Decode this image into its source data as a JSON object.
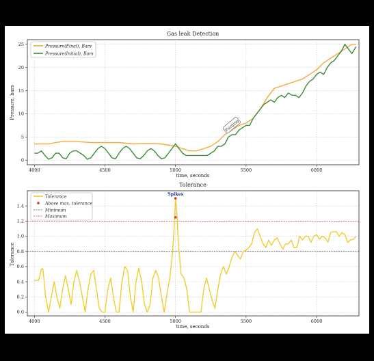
{
  "chart_data": [
    {
      "type": "line",
      "title": "Gas leak Detection",
      "xlabel": "time, seconds",
      "ylabel": "Pressure, bars",
      "xlim": [
        3950,
        6300
      ],
      "ylim": [
        -1,
        26
      ],
      "xticks": [
        4000,
        4500,
        5000,
        5500,
        6000
      ],
      "yticks": [
        0,
        5,
        10,
        15,
        20,
        25
      ],
      "grid": true,
      "legend": "top-left",
      "annotation": {
        "text": "Purging",
        "x": 5400,
        "y": 7.5
      },
      "series": [
        {
          "name": "Pressure(Final), Bars",
          "color": "#f2a93b",
          "x": [
            4000,
            4100,
            4150,
            4200,
            4300,
            4400,
            4500,
            4600,
            4700,
            4800,
            4900,
            5000,
            5050,
            5100,
            5150,
            5200,
            5250,
            5300,
            5350,
            5400,
            5450,
            5500,
            5550,
            5600,
            5650,
            5700,
            5750,
            5800,
            5850,
            5900,
            5950,
            6000,
            6050,
            6100,
            6150,
            6200,
            6250,
            6280
          ],
          "y": [
            3.5,
            3.5,
            3.8,
            4.0,
            4.0,
            3.8,
            3.8,
            3.8,
            3.5,
            3.6,
            3.5,
            3.0,
            2.5,
            2.0,
            2.0,
            2.5,
            3.0,
            4.0,
            5.5,
            6.5,
            7.5,
            8.0,
            9.0,
            11.0,
            13.5,
            15.5,
            16.0,
            16.5,
            17.0,
            17.5,
            18.5,
            19.5,
            21.0,
            22.0,
            23.0,
            24.0,
            25.0,
            25.0
          ]
        },
        {
          "name": "Pressure(Initial), Bars",
          "color": "#3d8b37",
          "x": [
            4000,
            4025,
            4050,
            4075,
            4100,
            4125,
            4150,
            4175,
            4200,
            4225,
            4250,
            4275,
            4300,
            4325,
            4350,
            4375,
            4400,
            4425,
            4450,
            4475,
            4500,
            4525,
            4550,
            4575,
            4600,
            4625,
            4650,
            4675,
            4700,
            4725,
            4750,
            4775,
            4800,
            4825,
            4850,
            4875,
            4900,
            4925,
            4950,
            4975,
            5000,
            5025,
            5050,
            5075,
            5100,
            5125,
            5150,
            5175,
            5200,
            5225,
            5250,
            5275,
            5300,
            5325,
            5350,
            5375,
            5400,
            5425,
            5450,
            5475,
            5500,
            5525,
            5550,
            5575,
            5600,
            5625,
            5650,
            5675,
            5700,
            5725,
            5750,
            5775,
            5800,
            5825,
            5850,
            5875,
            5900,
            5925,
            5950,
            5975,
            6000,
            6025,
            6050,
            6075,
            6100,
            6125,
            6150,
            6175,
            6200,
            6225,
            6250,
            6280
          ],
          "y": [
            1.5,
            1.5,
            2.0,
            1.0,
            0.2,
            0.5,
            1.5,
            1.5,
            0.5,
            0.3,
            1.5,
            2.0,
            2.0,
            1.5,
            1.0,
            0.2,
            0.5,
            1.5,
            2.5,
            3.0,
            2.5,
            1.5,
            0.5,
            0.3,
            1.5,
            2.5,
            3.0,
            2.5,
            1.5,
            0.5,
            0.3,
            1.0,
            2.0,
            2.5,
            2.0,
            1.0,
            0.3,
            0.5,
            1.5,
            2.5,
            3.5,
            2.5,
            1.5,
            1.0,
            1.0,
            1.0,
            1.0,
            1.0,
            1.0,
            1.0,
            1.5,
            2.0,
            3.0,
            3.0,
            3.5,
            5.0,
            5.5,
            5.5,
            6.5,
            7.0,
            7.5,
            7.5,
            9.0,
            10.0,
            11.0,
            12.0,
            12.5,
            13.0,
            12.5,
            13.5,
            14.0,
            13.5,
            14.5,
            14.0,
            14.0,
            13.5,
            14.5,
            16.0,
            17.0,
            17.5,
            18.5,
            19.0,
            18.5,
            20.0,
            21.0,
            21.5,
            22.5,
            23.5,
            25.0,
            24.0,
            23.0,
            24.5
          ]
        }
      ]
    },
    {
      "type": "line",
      "title": "Tolerance",
      "xlabel": "time, seconds",
      "ylabel": "Tolerance",
      "xlim": [
        3950,
        6300
      ],
      "ylim": [
        -0.05,
        1.6
      ],
      "xticks": [
        4000,
        4500,
        5000,
        5500,
        6000
      ],
      "yticks": [
        "0.0",
        "0.2",
        "0.4",
        "0.6",
        "0.8",
        "1.0",
        "1.2",
        "1.4"
      ],
      "grid": true,
      "legend": "top-left",
      "annotation": {
        "text": "Spikes",
        "x": 5000,
        "y": 1.5
      },
      "legend_entries": [
        "Tolerance",
        "Above max. tolerance",
        "Minimum",
        "Maximum"
      ],
      "thresholds": {
        "minimum": 0.8,
        "maximum": 1.2,
        "minimum_color": "#444444",
        "maximum_color": "#d9352e"
      },
      "above_max_points": [
        {
          "x": 5000,
          "y": 1.5
        },
        {
          "x": 5000,
          "y": 1.25
        }
      ],
      "series": [
        {
          "name": "Tolerance",
          "color": "#f0cc30",
          "x": [
            4000,
            4030,
            4050,
            4060,
            4080,
            4100,
            4120,
            4140,
            4160,
            4180,
            4200,
            4220,
            4240,
            4260,
            4280,
            4300,
            4320,
            4340,
            4360,
            4380,
            4400,
            4420,
            4440,
            4460,
            4480,
            4500,
            4520,
            4540,
            4560,
            4580,
            4600,
            4620,
            4640,
            4660,
            4680,
            4700,
            4720,
            4740,
            4760,
            4780,
            4800,
            4820,
            4840,
            4860,
            4880,
            4900,
            4920,
            4940,
            4960,
            4980,
            4990,
            5000,
            5010,
            5020,
            5040,
            5060,
            5080,
            5100,
            5120,
            5140,
            5160,
            5180,
            5200,
            5220,
            5240,
            5260,
            5280,
            5300,
            5320,
            5340,
            5360,
            5380,
            5400,
            5420,
            5440,
            5460,
            5480,
            5500,
            5520,
            5540,
            5560,
            5580,
            5600,
            5620,
            5640,
            5660,
            5680,
            5700,
            5720,
            5740,
            5760,
            5780,
            5800,
            5820,
            5840,
            5860,
            5880,
            5900,
            5920,
            5940,
            5960,
            5980,
            6000,
            6020,
            6040,
            6060,
            6080,
            6100,
            6120,
            6140,
            6160,
            6180,
            6200,
            6220,
            6240,
            6260,
            6280
          ],
          "y": [
            0.42,
            0.42,
            0.57,
            0.57,
            0.2,
            0.0,
            0.2,
            0.4,
            0.2,
            0.05,
            0.3,
            0.48,
            0.3,
            0.1,
            0.4,
            0.55,
            0.4,
            0.2,
            0.0,
            0.3,
            0.5,
            0.55,
            0.3,
            0.05,
            0.0,
            0.0,
            0.3,
            0.45,
            0.2,
            0.0,
            0.0,
            0.4,
            0.6,
            0.55,
            0.2,
            0.0,
            0.4,
            0.58,
            0.4,
            0.1,
            0.0,
            0.1,
            0.45,
            0.55,
            0.45,
            0.2,
            0.0,
            0.25,
            0.45,
            0.8,
            1.1,
            1.5,
            1.3,
            0.9,
            0.5,
            0.45,
            0.3,
            0.0,
            0.0,
            0.0,
            0.0,
            0.0,
            0.3,
            0.45,
            0.3,
            0.15,
            0.05,
            0.3,
            0.5,
            0.6,
            0.5,
            0.6,
            0.72,
            0.8,
            0.75,
            0.7,
            0.8,
            0.82,
            0.85,
            0.9,
            1.05,
            1.1,
            1.0,
            0.9,
            0.85,
            0.95,
            0.88,
            0.95,
            0.98,
            0.9,
            0.83,
            0.9,
            0.9,
            0.95,
            0.85,
            0.85,
            1.0,
            0.95,
            1.0,
            1.0,
            0.92,
            1.0,
            1.02,
            0.96,
            1.0,
            0.98,
            0.92,
            1.05,
            1.06,
            1.06,
            1.0,
            1.05,
            1.02,
            0.92,
            0.95,
            0.96,
            1.0
          ]
        }
      ]
    }
  ]
}
